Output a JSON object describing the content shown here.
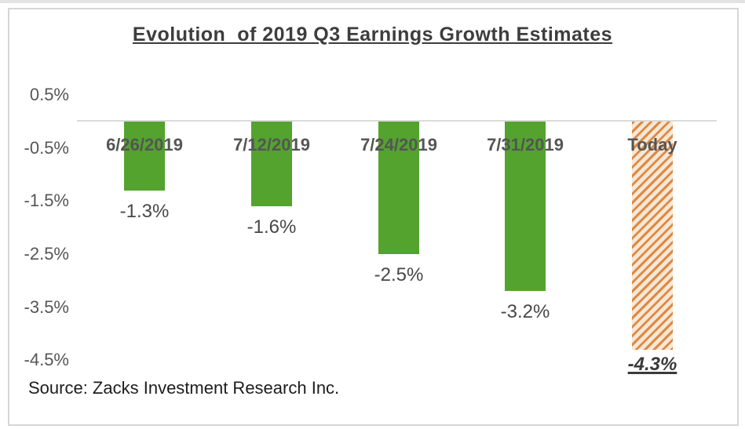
{
  "frame": {
    "title": "Evolution  of 2019 Q3 Earnings Growth Estimates",
    "source": "Source: Zacks Investment Research Inc."
  },
  "chart_data": {
    "type": "bar",
    "title": "Evolution of 2019 Q3 Earnings Growth Estimates",
    "categories": [
      "6/26/2019",
      "7/12/2019",
      "7/24/2019",
      "7/31/2019",
      "Today"
    ],
    "values": [
      -1.3,
      -1.6,
      -2.5,
      -3.2,
      -4.3
    ],
    "data_labels": [
      "-1.3%",
      "-1.6%",
      "-2.5%",
      "-3.2%",
      "-4.3%"
    ],
    "highlight_index": 4,
    "highlight_style": "diagonal-hatch",
    "xlabel": "",
    "ylabel": "",
    "ylim": [
      -4.5,
      0.5
    ],
    "yticks": [
      {
        "label": "0.5%",
        "value": 0.5
      },
      {
        "label": "-0.5%",
        "value": -0.5
      },
      {
        "label": "-1.5%",
        "value": -1.5
      },
      {
        "label": "-2.5%",
        "value": -2.5
      },
      {
        "label": "-3.5%",
        "value": -3.5
      },
      {
        "label": "-4.5%",
        "value": -4.5
      }
    ],
    "grid": false,
    "legend": false,
    "source": "Source: Zacks Investment Research Inc.",
    "colors": {
      "bar_green": "#53a32e",
      "hatch_stripe": "#dc8a45",
      "hatch_bg": "#f9e7d5",
      "axis_line": "#dbdbdb",
      "title_text": "#3d3d3d",
      "tick_text": "#565656",
      "date_text": "#555555",
      "value_text": "#474747",
      "source_text": "#1d1d1d"
    }
  }
}
